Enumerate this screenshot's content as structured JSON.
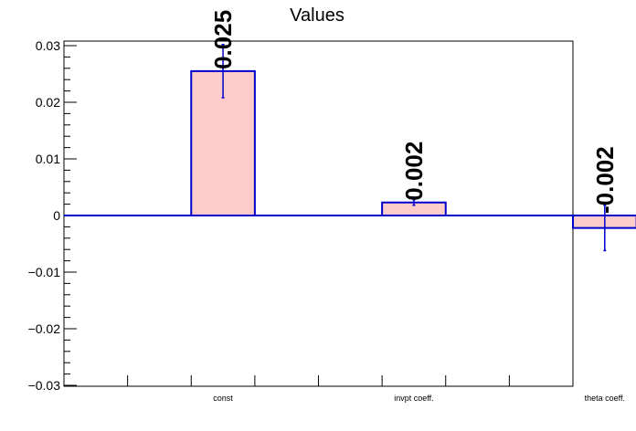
{
  "chart_data": {
    "type": "bar",
    "title": "Values",
    "categories": [
      "const",
      "invpt coeff.",
      "theta coeff."
    ],
    "values": [
      0.0255,
      0.0023,
      -0.0022
    ],
    "errors": [
      0.0047,
      0.0005,
      0.004
    ],
    "value_labels": [
      "0.025",
      "0.002",
      "-0.002"
    ],
    "ylim": [
      -0.03,
      0.03
    ],
    "yticks": [
      -0.03,
      -0.02,
      -0.01,
      0,
      0.01,
      0.02,
      0.03
    ],
    "ytick_labels": [
      "−0.03",
      "−0.02",
      "−0.01",
      "0",
      "0.01",
      "0.02",
      "0.03"
    ],
    "xlabel": "",
    "ylabel": "",
    "grid": false,
    "bar_fill_color": "#ffcccc",
    "bar_edge_color": "#0000cc"
  }
}
